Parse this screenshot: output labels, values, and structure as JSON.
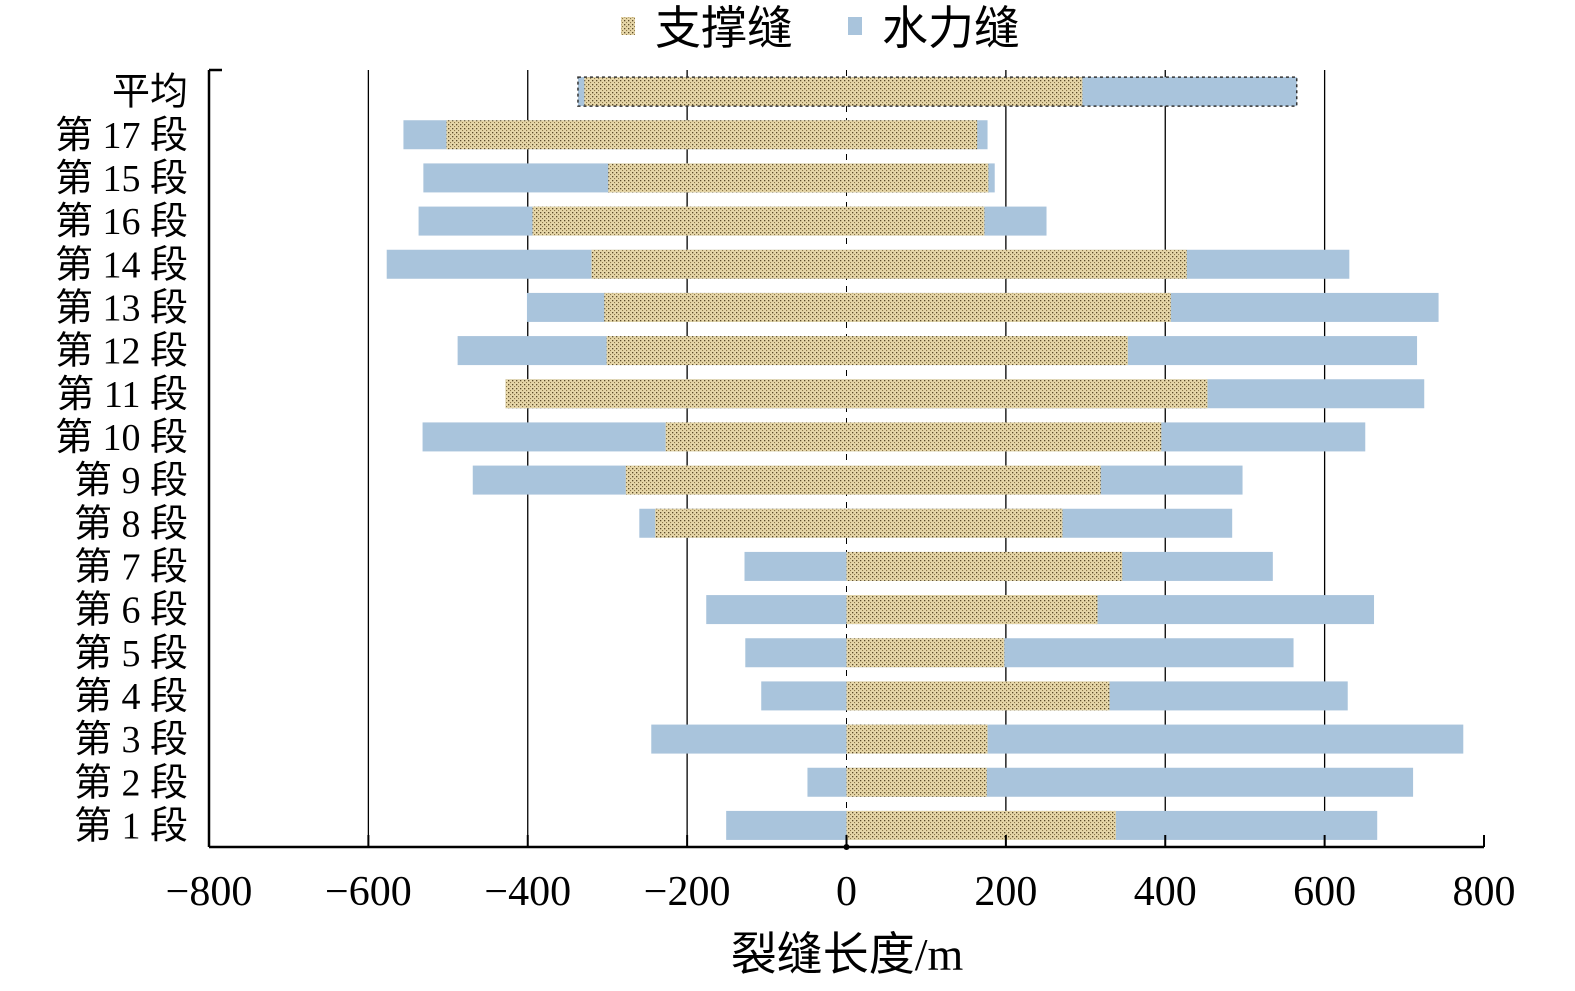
{
  "chart_data": {
    "type": "bar",
    "orientation": "horizontal",
    "stacked_diverging": true,
    "title": "",
    "xlabel": "裂缝长度/m",
    "ylabel": "",
    "xlim": [
      -800,
      800
    ],
    "xticks": [
      -800,
      -600,
      -400,
      -200,
      0,
      200,
      400,
      600,
      800
    ],
    "xtick_labels": [
      "−800",
      "−600",
      "−400",
      "−200",
      "0",
      "200",
      "400",
      "600",
      "800"
    ],
    "grid": "vertical",
    "legend_position": "top-center",
    "categories": [
      "平均",
      "第 17 段",
      "第 15 段",
      "第 16 段",
      "第 14 段",
      "第 13 段",
      "第 12 段",
      "第 11 段",
      "第 10 段",
      "第 9 段",
      "第 8 段",
      "第 7 段",
      "第 6 段",
      "第 5 段",
      "第 4 段",
      "第 3 段",
      "第 2 段",
      "第 1 段"
    ],
    "series": [
      {
        "name": "支撑缝",
        "color": "#e6d6a8",
        "left": [
          -329,
          -502,
          -299,
          -394,
          -320,
          -304,
          -301,
          -428,
          -227,
          -277,
          -240,
          0,
          0,
          0,
          0,
          0,
          0,
          0
        ],
        "right": [
          296,
          164,
          178,
          173,
          427,
          407,
          353,
          453,
          395,
          319,
          271,
          346,
          315,
          198,
          330,
          177,
          176,
          338
        ]
      },
      {
        "name": "水力缝",
        "color": "#a9c4dc",
        "left": [
          -337,
          -556,
          -531,
          -537,
          -577,
          -401,
          -488,
          -428,
          -532,
          -469,
          -260,
          -128,
          -176,
          -127,
          -107,
          -245,
          -49,
          -151
        ],
        "right": [
          565,
          177,
          186,
          251,
          631,
          743,
          716,
          725,
          651,
          497,
          484,
          535,
          662,
          561,
          629,
          774,
          711,
          666
        ]
      }
    ]
  }
}
